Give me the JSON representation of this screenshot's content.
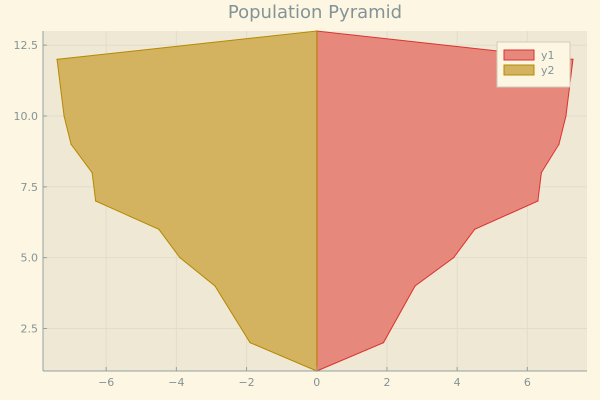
{
  "chart_data": {
    "type": "area",
    "title": "Population Pyramid",
    "xlabel": "",
    "ylabel": "",
    "xlim": [
      -7.8,
      7.7
    ],
    "ylim": [
      1.0,
      13.0
    ],
    "x_ticks": [
      -6,
      -4,
      -2,
      0,
      2,
      4,
      6
    ],
    "y_ticks": [
      2.5,
      5.0,
      7.5,
      10.0,
      12.5
    ],
    "x_tick_labels": [
      "−6",
      "−4",
      "−2",
      "0",
      "2",
      "4",
      "6"
    ],
    "y_tick_labels": [
      "2.5",
      "5.0",
      "7.5",
      "10.0",
      "12.5"
    ],
    "grid": true,
    "legend_position": "top-right",
    "series": [
      {
        "name": "y1",
        "color": "#e6887c",
        "edge_color": "#dc322f",
        "points": [
          [
            0,
            1
          ],
          [
            1.9,
            2
          ],
          [
            2.8,
            4
          ],
          [
            3.9,
            5
          ],
          [
            4.5,
            6
          ],
          [
            6.3,
            7
          ],
          [
            6.4,
            8
          ],
          [
            6.9,
            9
          ],
          [
            7.1,
            10
          ],
          [
            7.3,
            12
          ],
          [
            0,
            13
          ]
        ]
      },
      {
        "name": "y2",
        "color": "#d3b35f",
        "edge_color": "#b58900",
        "points": [
          [
            0,
            1
          ],
          [
            -1.9,
            2
          ],
          [
            -2.9,
            4
          ],
          [
            -3.9,
            5
          ],
          [
            -4.5,
            6
          ],
          [
            -6.3,
            7
          ],
          [
            -6.4,
            8
          ],
          [
            -7,
            9
          ],
          [
            -7.2,
            10
          ],
          [
            -7.3,
            11
          ],
          [
            -7.4,
            12
          ],
          [
            0,
            13
          ]
        ]
      }
    ]
  }
}
